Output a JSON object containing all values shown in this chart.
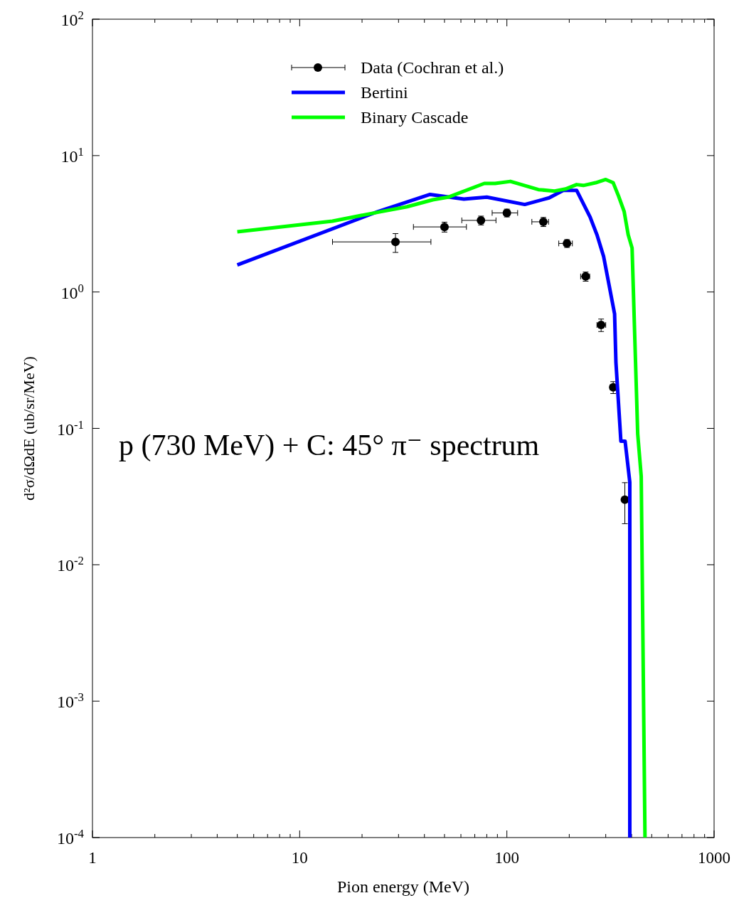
{
  "chart_data": {
    "type": "line",
    "xlabel": "Pion energy (MeV)",
    "ylabel": "d²σ/dΩdE (ub/sr/MeV)",
    "annotations": [
      "p (730 MeV) + C:  45° π⁻ spectrum"
    ],
    "log": "xy",
    "legend": "top",
    "grid": false,
    "xlim": [
      1,
      1000
    ],
    "ylim": [
      0.0001,
      100
    ],
    "xticks": [
      1,
      {
        "value": 2,
        "label": null
      },
      {
        "value": 3,
        "label": null
      },
      {
        "value": 4,
        "label": null
      },
      {
        "value": 5,
        "label": null
      },
      {
        "value": 6,
        "label": null
      },
      {
        "value": 7,
        "label": null
      },
      {
        "value": 8,
        "label": null
      },
      {
        "value": 9,
        "label": null
      },
      10,
      {
        "value": 20,
        "label": null
      },
      {
        "value": 30,
        "label": null
      },
      {
        "value": 40,
        "label": null
      },
      {
        "value": 50,
        "label": null
      },
      {
        "value": 60,
        "label": null
      },
      {
        "value": 70,
        "label": null
      },
      {
        "value": 80,
        "label": null
      },
      {
        "value": 90,
        "label": null
      },
      100,
      {
        "value": 200,
        "label": null
      },
      {
        "value": 300,
        "label": null
      },
      {
        "value": 400,
        "label": null
      },
      {
        "value": 500,
        "label": null
      },
      {
        "value": 600,
        "label": null
      },
      {
        "value": 700,
        "label": null
      },
      {
        "value": 800,
        "label": null
      },
      {
        "value": 900,
        "label": null
      },
      1000
    ],
    "yticks": [
      {
        "value": 0.0001,
        "label": "10$^{-4}$"
      },
      {
        "value": 0.001,
        "label": "10$^{-3}$"
      },
      {
        "value": 0.01,
        "label": "10$^{-2}$"
      },
      {
        "value": 0.1,
        "label": "10$^{-1}$"
      },
      {
        "value": 1,
        "label": "10$^{0}$"
      },
      {
        "value": 10,
        "label": "10$^{1}$"
      },
      {
        "value": 100,
        "label": "10$^{2}$"
      }
    ],
    "series": [
      {
        "name": "Data (Cochran et al.)",
        "type": "scatter",
        "marker": "circle",
        "color": "#000000",
        "x": [
          29,
          50,
          75,
          100,
          150,
          195,
          240,
          285,
          326,
          371
        ],
        "values": [
          2.33,
          3.0,
          3.35,
          3.8,
          3.27,
          2.27,
          1.3,
          0.573,
          0.2,
          0.03
        ],
        "errors": [
          [
            1.95,
            2.68
          ],
          0.25,
          0.25,
          0.25,
          0.25,
          0.15,
          0.1,
          0.06,
          0.02,
          [
            0.02,
            0.04
          ]
        ],
        "xerrors": [
          [
            14.4,
            43
          ],
          [
            35.4,
            63.8
          ],
          [
            60.6,
            88.6
          ],
          [
            84.9,
            112.7
          ],
          [
            132,
            159
          ],
          [
            178,
            207
          ],
          [
            227,
            251
          ],
          [
            272,
            300
          ],
          [
            315,
            337
          ],
          [
            365,
            377
          ]
        ]
      },
      {
        "name": "Bertini",
        "marker": "none",
        "color": "#0000ff",
        "x": [
          5,
          24,
          42.6,
          62,
          80,
          122,
          160,
          187,
          217,
          252,
          272,
          293,
          331,
          336,
          355,
          372,
          392,
          392
        ],
        "values": [
          1.58,
          3.9,
          5.19,
          4.8,
          4.96,
          4.38,
          4.9,
          5.56,
          5.56,
          3.55,
          2.63,
          1.82,
          0.69,
          0.304,
          0.0805,
          0.0805,
          0.0403,
          0.0001
        ]
      },
      {
        "name": "Binary Cascade",
        "marker": "none",
        "color": "#00ff00",
        "x": [
          5,
          14.4,
          24,
          33,
          43.9,
          52.6,
          77.8,
          87.8,
          104,
          142,
          170,
          192,
          217,
          234,
          268,
          300,
          326,
          346,
          368,
          385,
          402,
          428,
          445,
          464
        ],
        "values": [
          2.76,
          3.31,
          3.85,
          4.22,
          4.74,
          4.98,
          6.25,
          6.25,
          6.47,
          5.63,
          5.5,
          5.69,
          6.13,
          6.04,
          6.32,
          6.68,
          6.32,
          5.04,
          3.9,
          2.63,
          2.1,
          0.091,
          0.0445,
          0.0001
        ]
      }
    ]
  }
}
